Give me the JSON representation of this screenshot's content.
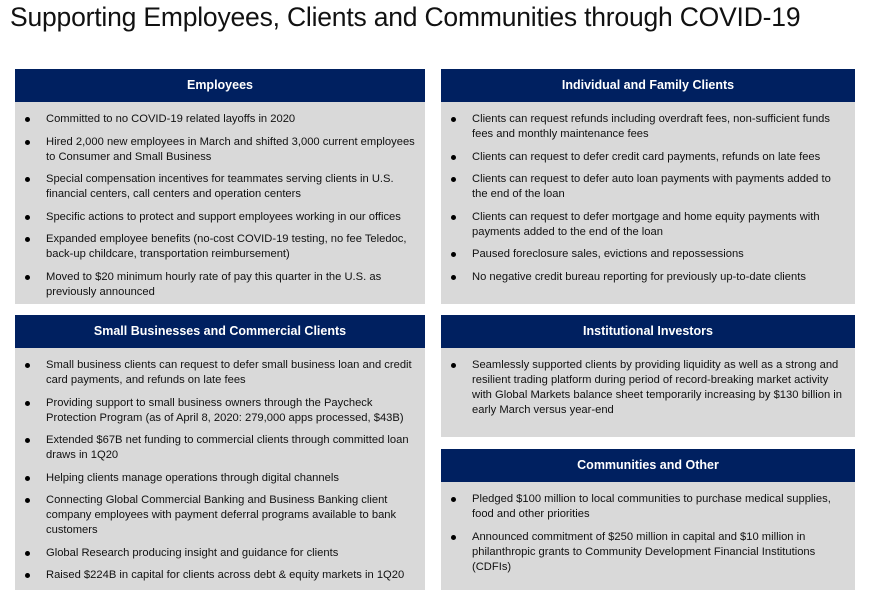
{
  "title": "Supporting Employees, Clients and Communities through COVID-19",
  "colors": {
    "header_bg": "#002060",
    "panel_bg": "#d9d9d9"
  },
  "panels": [
    {
      "heading": "Employees",
      "items": [
        "Committed to no COVID-19 related layoffs in 2020",
        "Hired 2,000 new employees in March and shifted 3,000 current employees to Consumer and Small Business",
        "Special compensation incentives for teammates serving clients in U.S. financial centers, call centers and operation centers",
        "Specific actions to protect and support employees working in our offices",
        "Expanded employee benefits (no-cost COVID-19 testing, no fee Teledoc, back-up childcare, transportation reimbursement)",
        "Moved to $20 minimum hourly rate of pay this quarter in the U.S. as previously announced"
      ]
    },
    {
      "heading": "Small Businesses and Commercial Clients",
      "items": [
        "Small business clients can request to defer small business loan and credit card payments, and refunds on late fees",
        "Providing support to small business owners through the Paycheck Protection Program (as of April 8, 2020: 279,000 apps processed, $43B)",
        "Extended $67B net funding to commercial clients through committed loan draws in 1Q20",
        "Helping clients manage operations through digital channels",
        "Connecting Global Commercial Banking and Business Banking client company employees with payment deferral programs available to bank customers",
        "Global Research producing insight and guidance for clients",
        "Raised $224B in capital for clients across debt & equity markets in 1Q20"
      ]
    },
    {
      "heading": "Individual and Family Clients",
      "items": [
        "Clients can request refunds including overdraft fees, non-sufficient funds fees and monthly maintenance fees",
        "Clients can request to defer credit card payments, refunds on late fees",
        "Clients can request to defer auto loan payments with payments added to the end of the loan",
        "Clients can request to defer mortgage and home equity payments with payments added to the end of the loan",
        "Paused foreclosure sales, evictions and repossessions",
        "No negative credit bureau reporting for previously up-to-date clients"
      ]
    },
    {
      "heading": "Institutional Investors",
      "items": [
        "Seamlessly supported clients by providing liquidity as well as a strong and resilient trading platform during period of record-breaking market activity with Global Markets balance sheet temporarily increasing by $130 billion in early March versus year-end"
      ]
    },
    {
      "heading": "Communities and Other",
      "items": [
        "Pledged $100 million to local communities to purchase medical supplies, food and other priorities",
        "Announced commitment of $250 million in capital and $10 million in philanthropic grants to Community Development Financial Institutions (CDFIs)"
      ]
    }
  ]
}
